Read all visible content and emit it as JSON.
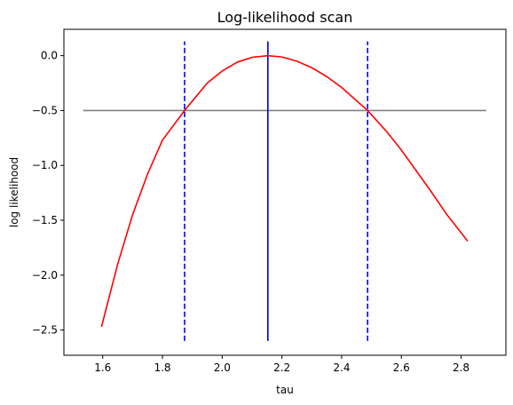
{
  "chart_data": {
    "type": "line",
    "title": "Log-likelihood scan",
    "xlabel": "tau",
    "ylabel": "log likelihood",
    "xlim": [
      1.47,
      2.95
    ],
    "ylim": [
      -2.73,
      0.24
    ],
    "x_ticks": [
      1.6,
      1.8,
      2.0,
      2.2,
      2.4,
      2.6,
      2.8
    ],
    "x_tick_labels": [
      "1.6",
      "1.8",
      "2.0",
      "2.2",
      "2.4",
      "2.6",
      "2.8"
    ],
    "y_ticks": [
      0.0,
      -0.5,
      -1.0,
      -1.5,
      -2.0,
      -2.5
    ],
    "y_tick_labels": [
      "0.0",
      "−0.5",
      "−1.0",
      "−1.5",
      "−2.0",
      "−2.5"
    ],
    "grid": false,
    "series": [
      {
        "color": "#ff0000",
        "style": "solid",
        "x": [
          1.596,
          1.65,
          1.7,
          1.75,
          1.8,
          1.874,
          1.95,
          2.0,
          2.05,
          2.1,
          2.153,
          2.2,
          2.25,
          2.3,
          2.35,
          2.4,
          2.487,
          2.55,
          2.6,
          2.65,
          2.7,
          2.75,
          2.822
        ],
        "y": [
          -2.47,
          -1.9,
          -1.45,
          -1.08,
          -0.77,
          -0.5,
          -0.25,
          -0.14,
          -0.06,
          -0.015,
          0.0,
          -0.012,
          -0.05,
          -0.11,
          -0.19,
          -0.29,
          -0.5,
          -0.69,
          -0.86,
          -1.05,
          -1.24,
          -1.44,
          -1.69
        ]
      },
      {
        "color": "#808080",
        "style": "solid",
        "x": [
          1.534,
          2.884
        ],
        "y": [
          -0.5,
          -0.5
        ]
      }
    ],
    "vlines": [
      {
        "x": 2.153,
        "y": [
          -2.6,
          0.13
        ],
        "color": "#0000cc",
        "style": "solid"
      },
      {
        "x": 1.874,
        "y": [
          -2.6,
          0.13
        ],
        "color": "#0000ff",
        "style": "dashed"
      },
      {
        "x": 2.487,
        "y": [
          -2.6,
          0.13
        ],
        "color": "#0000ff",
        "style": "dashed"
      }
    ]
  }
}
